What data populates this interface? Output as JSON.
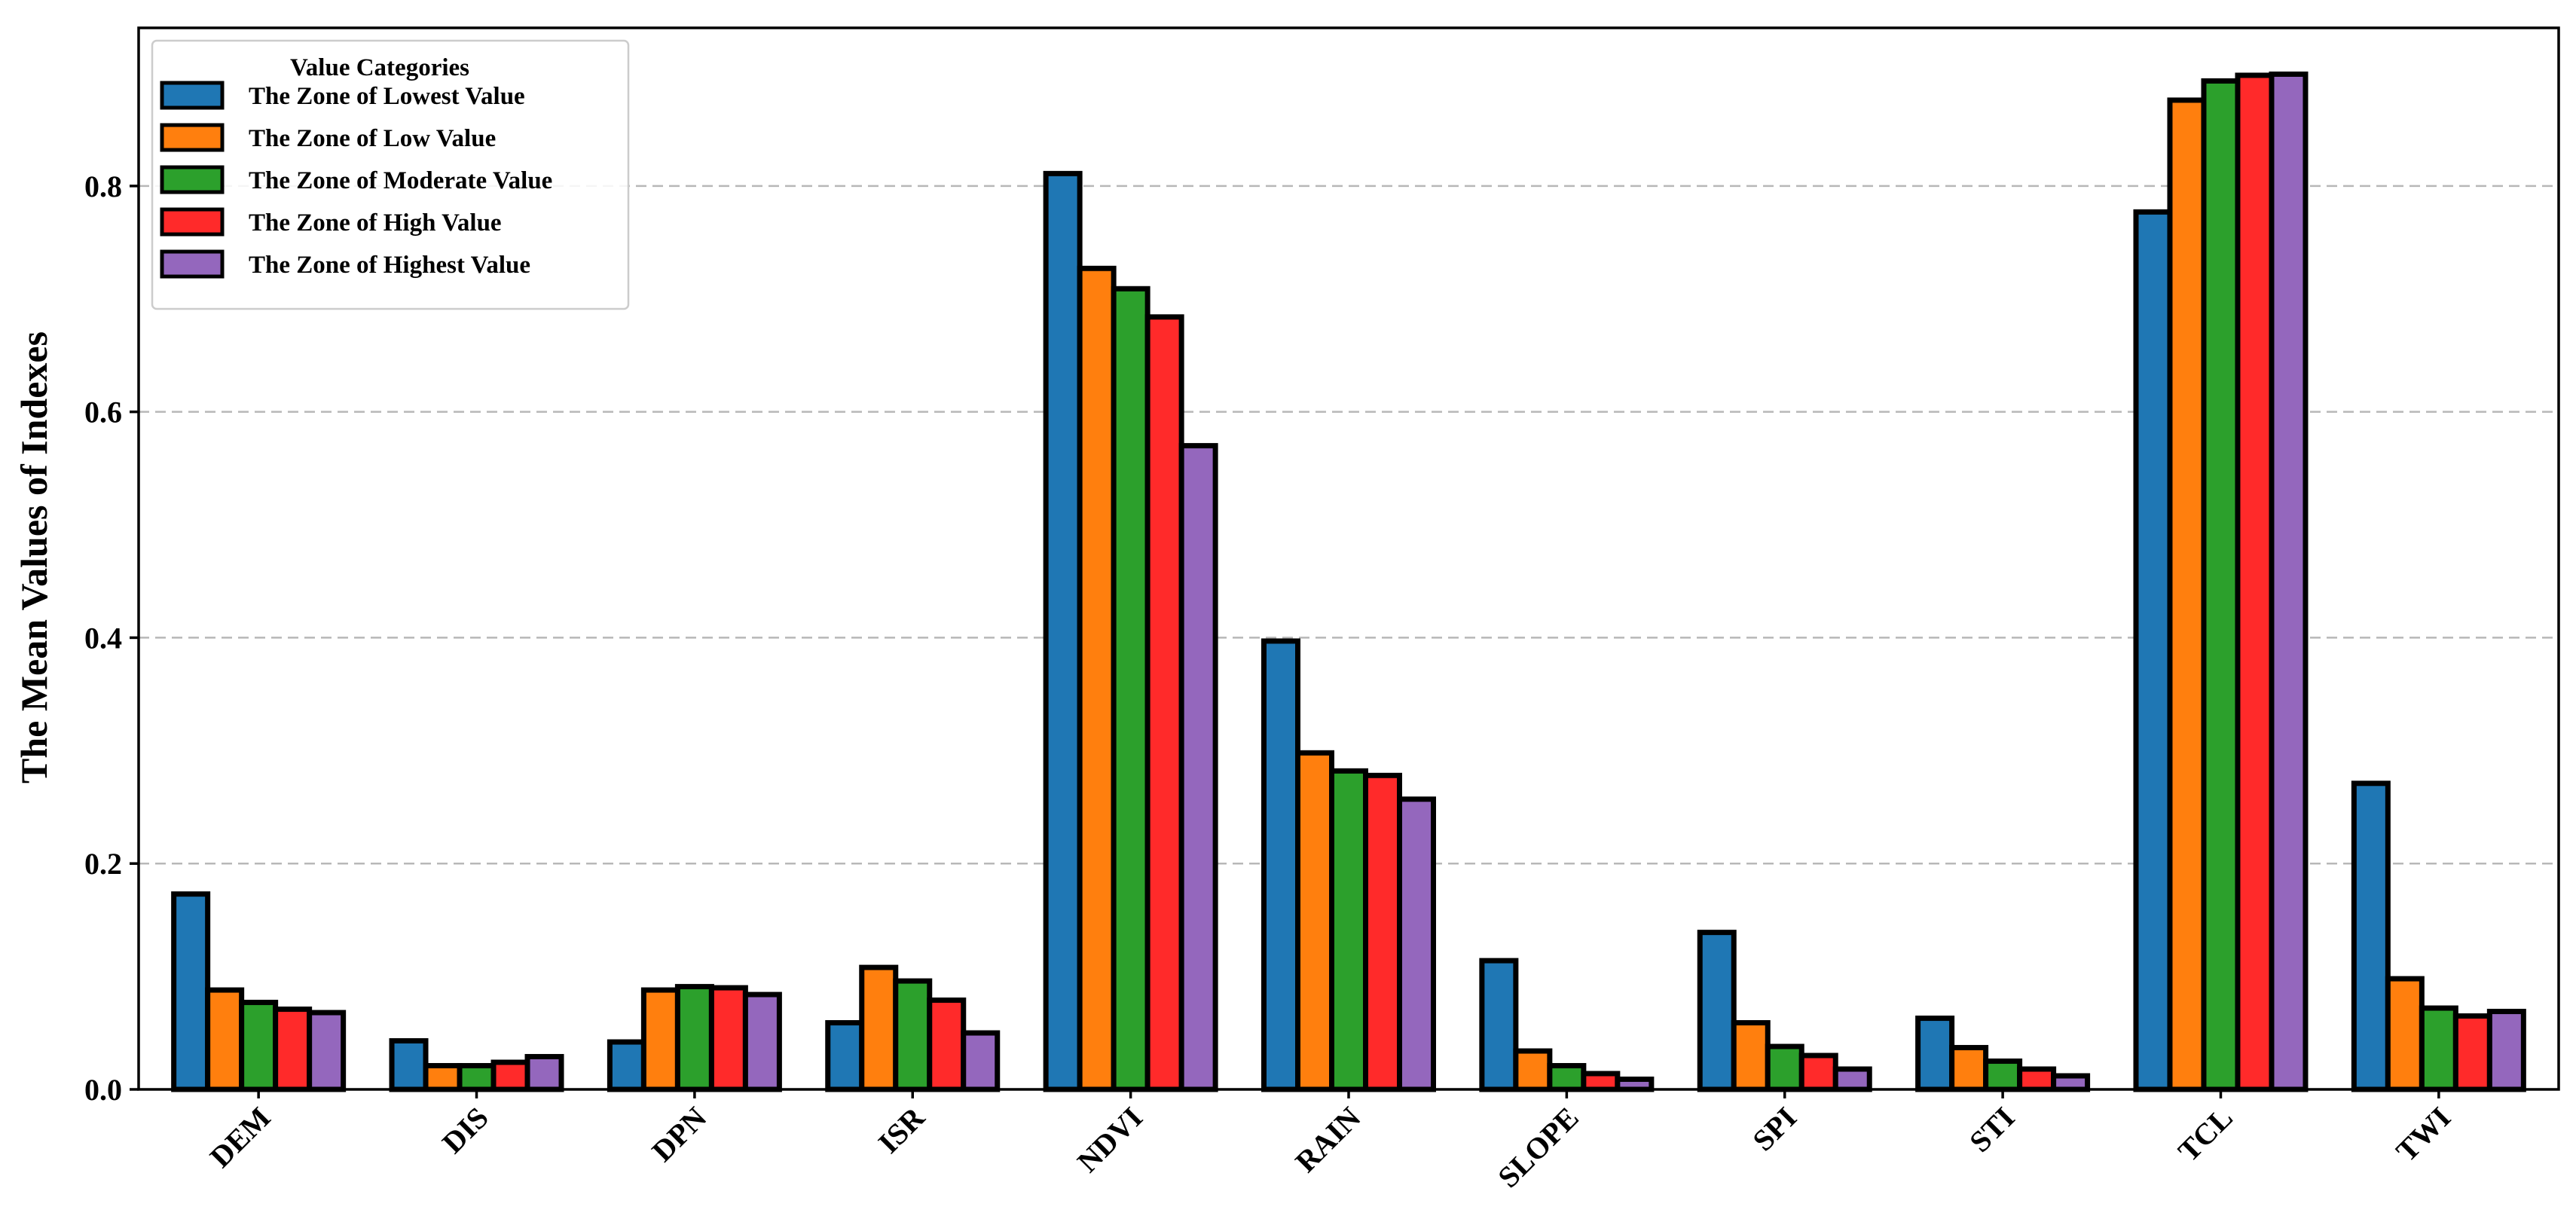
{
  "chart_data": {
    "type": "bar",
    "title": "",
    "xlabel": "",
    "ylabel": "The Mean Values of Indexes",
    "ylim": [
      0,
      0.94
    ],
    "yticks": [
      "0.0",
      "0.2",
      "0.4",
      "0.6",
      "0.8"
    ],
    "grid": "horizontal dashed",
    "legend_title": "Value Categories",
    "legend_placement": "top-left",
    "categories": [
      "DEM",
      "DIS",
      "DPN",
      "ISR",
      "NDVI",
      "RAIN",
      "SLOPE",
      "SPI",
      "STI",
      "TCL",
      "TWI"
    ],
    "series": [
      {
        "name": "The Zone of Lowest Value",
        "color": "#1f77b4",
        "values": [
          0.173,
          0.043,
          0.042,
          0.059,
          0.811,
          0.397,
          0.114,
          0.139,
          0.063,
          0.777,
          0.271
        ]
      },
      {
        "name": "The Zone of Low Value",
        "color": "#ff7f0e",
        "values": [
          0.088,
          0.021,
          0.088,
          0.108,
          0.727,
          0.298,
          0.034,
          0.059,
          0.037,
          0.876,
          0.098
        ]
      },
      {
        "name": "The Zone of Moderate Value",
        "color": "#2ca02c",
        "values": [
          0.077,
          0.021,
          0.091,
          0.096,
          0.709,
          0.282,
          0.021,
          0.038,
          0.025,
          0.893,
          0.072
        ]
      },
      {
        "name": "The Zone of High Value",
        "color": "#ff2a2a",
        "values": [
          0.071,
          0.024,
          0.09,
          0.079,
          0.684,
          0.278,
          0.014,
          0.03,
          0.018,
          0.898,
          0.065
        ]
      },
      {
        "name": "The Zone of Highest Value",
        "color": "#9467bd",
        "values": [
          0.068,
          0.029,
          0.084,
          0.05,
          0.57,
          0.257,
          0.009,
          0.018,
          0.012,
          0.899,
          0.069
        ]
      }
    ]
  }
}
